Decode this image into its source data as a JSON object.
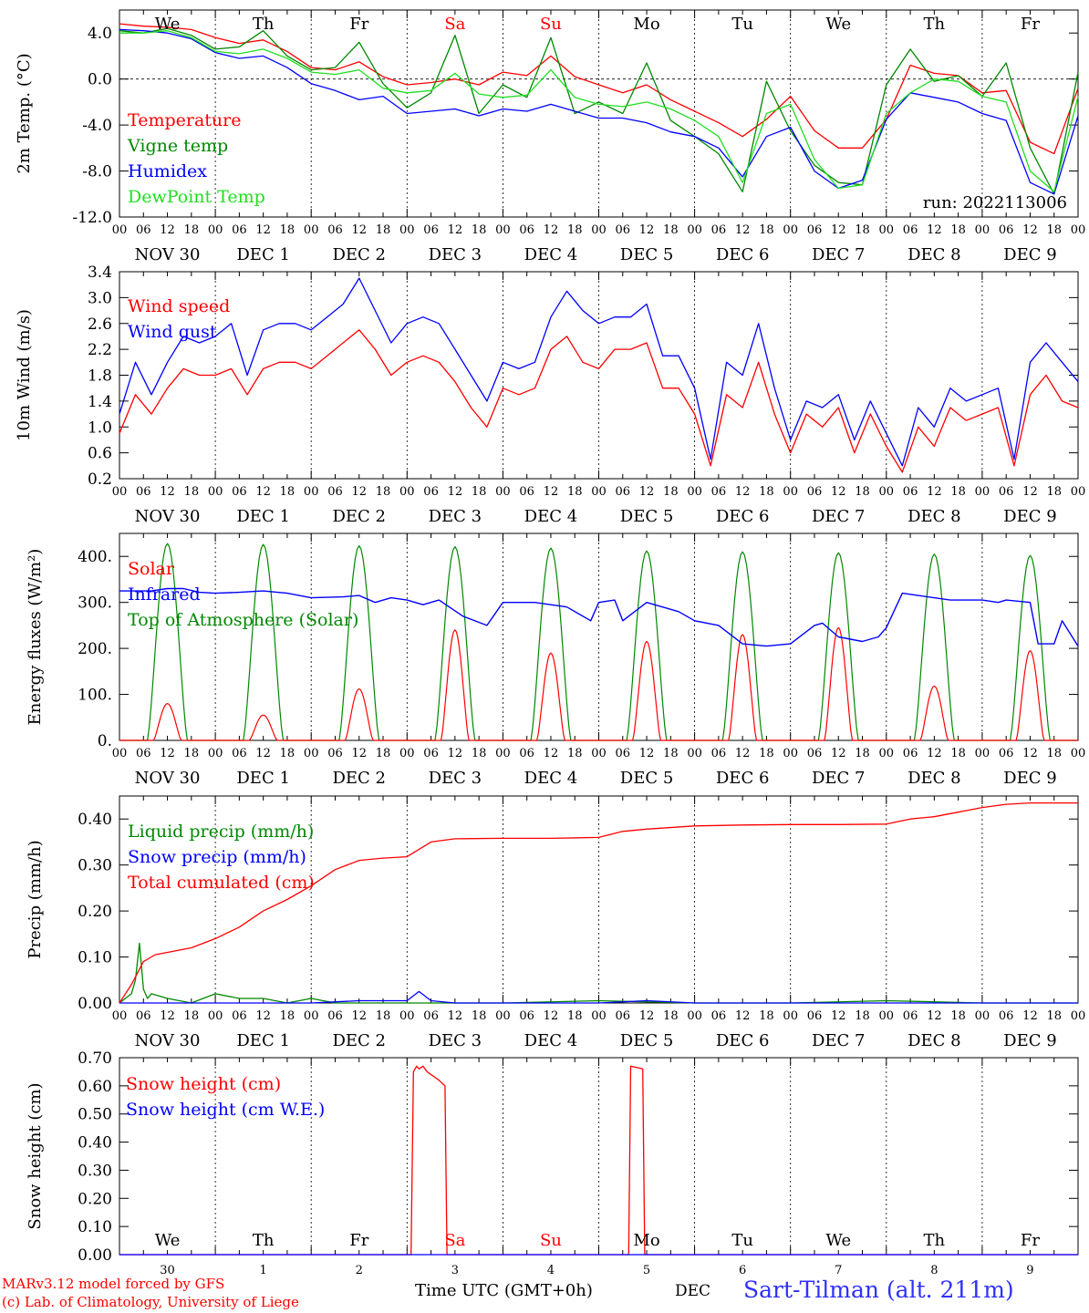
{
  "days": [
    "We",
    "Th",
    "Fr",
    "Sa",
    "Su",
    "Mo",
    "Tu",
    "We",
    "Th",
    "Fr"
  ],
  "weekend_days": [
    "Sa",
    "Su"
  ],
  "hour_ticks": [
    "00",
    "06",
    "12",
    "18"
  ],
  "date_labels": [
    "NOV 30",
    "DEC  1",
    "DEC  2",
    "DEC  3",
    "DEC  4",
    "DEC  5",
    "DEC  6",
    "DEC  7",
    "DEC  8",
    "DEC  9"
  ],
  "bottom_days": [
    "30",
    "1",
    "2",
    "3",
    "4",
    "5",
    "6",
    "7",
    "8",
    "9"
  ],
  "colors": {
    "red": "#ff0000",
    "green": "#008800",
    "blue": "#0000ff",
    "lightgreen": "#22dd22"
  },
  "footer": {
    "model": "MARv3.12 model forced by GFS",
    "lab": "(c) Lab. of Climatology, University of Liege",
    "xlabel": "Time UTC (GMT+0h)",
    "month": "DEC",
    "station": "Sart-Tilman (alt. 211m)"
  },
  "chart_data": [
    {
      "type": "line",
      "ylabel": "2m Temp. (°C)",
      "ylim": [
        -12,
        6
      ],
      "yticks": [
        "4.0",
        "0.0",
        "-4.0",
        "-8.0",
        "-12.0"
      ],
      "ytick_values": [
        4,
        0,
        -4,
        -8,
        -12
      ],
      "zero_line": true,
      "note": "run: 2022113006",
      "x_unit": "hours since NOV 30 00 UTC",
      "series": [
        {
          "name": "Temperature",
          "color": "red",
          "x": [
            0,
            6,
            12,
            18,
            24,
            30,
            36,
            42,
            48,
            54,
            60,
            66,
            72,
            78,
            84,
            90,
            96,
            102,
            108,
            114,
            120,
            126,
            132,
            138,
            144,
            150,
            156,
            162,
            168,
            174,
            180,
            186,
            192,
            198,
            204,
            210,
            216,
            222,
            228,
            234,
            240
          ],
          "values": [
            4.8,
            4.6,
            4.5,
            4.3,
            3.6,
            3.1,
            3.4,
            2.4,
            1.0,
            0.8,
            1.5,
            0.2,
            -0.5,
            -0.3,
            0.0,
            -0.5,
            0.6,
            0.3,
            2.0,
            0.2,
            -0.5,
            -1.2,
            -0.5,
            -1.8,
            -2.8,
            -3.8,
            -5.0,
            -3.5,
            -1.5,
            -4.5,
            -6.0,
            -6.0,
            -3.5,
            1.2,
            0.5,
            0.3,
            -1.2,
            -1.0,
            -5.5,
            -6.5,
            -0.8
          ]
        },
        {
          "name": "Vigne temp",
          "color": "green",
          "x": [
            0,
            6,
            12,
            18,
            24,
            30,
            36,
            42,
            48,
            54,
            60,
            66,
            72,
            78,
            84,
            90,
            96,
            102,
            108,
            114,
            120,
            126,
            132,
            138,
            144,
            150,
            156,
            162,
            168,
            174,
            180,
            186,
            192,
            198,
            204,
            210,
            216,
            222,
            228,
            234,
            240
          ],
          "values": [
            4.2,
            4.0,
            4.4,
            3.8,
            2.6,
            2.8,
            4.2,
            2.0,
            0.8,
            1.0,
            3.2,
            -0.4,
            -2.5,
            -1.2,
            3.8,
            -3.0,
            -0.5,
            -1.6,
            3.6,
            -3.0,
            -2.0,
            -3.0,
            1.4,
            -3.6,
            -5.0,
            -6.5,
            -9.8,
            -0.2,
            -4.5,
            -7.5,
            -9.0,
            -9.2,
            -0.5,
            2.6,
            -0.2,
            0.3,
            -1.5,
            1.4,
            -6.0,
            -10.0,
            0.6
          ]
        },
        {
          "name": "Humidex",
          "color": "blue",
          "x": [
            0,
            6,
            12,
            18,
            24,
            30,
            36,
            42,
            48,
            54,
            60,
            66,
            72,
            78,
            84,
            90,
            96,
            102,
            108,
            114,
            120,
            126,
            132,
            138,
            144,
            150,
            156,
            162,
            168,
            174,
            180,
            186,
            192,
            198,
            204,
            210,
            216,
            222,
            228,
            234,
            240
          ],
          "values": [
            4.3,
            4.2,
            4.0,
            3.5,
            2.3,
            1.8,
            2.0,
            1.0,
            -0.4,
            -1.0,
            -1.8,
            -1.5,
            -3.0,
            -2.8,
            -2.6,
            -3.2,
            -2.6,
            -2.8,
            -2.2,
            -2.8,
            -3.4,
            -3.4,
            -3.8,
            -4.6,
            -5.0,
            -6.0,
            -8.5,
            -5.0,
            -4.2,
            -8.0,
            -9.5,
            -8.8,
            -3.5,
            -1.2,
            -1.6,
            -2.0,
            -3.0,
            -3.6,
            -9.0,
            -10.0,
            -3.2
          ]
        },
        {
          "name": "DewPoint Temp",
          "color": "lightgreen",
          "x": [
            0,
            6,
            12,
            18,
            24,
            30,
            36,
            42,
            48,
            54,
            60,
            66,
            72,
            78,
            84,
            90,
            96,
            102,
            108,
            114,
            120,
            126,
            132,
            138,
            144,
            150,
            156,
            162,
            168,
            174,
            180,
            186,
            192,
            198,
            204,
            210,
            216,
            222,
            228,
            234,
            240
          ],
          "values": [
            4.0,
            4.0,
            4.2,
            3.6,
            2.4,
            2.2,
            2.6,
            1.8,
            0.6,
            0.4,
            0.8,
            -0.8,
            -1.2,
            -1.0,
            0.5,
            -1.3,
            -1.6,
            -1.4,
            0.8,
            -1.6,
            -2.2,
            -2.4,
            -2.0,
            -2.6,
            -3.6,
            -5.0,
            -9.0,
            -3.0,
            -2.2,
            -7.0,
            -9.5,
            -9.2,
            -3.0,
            -1.2,
            0.0,
            -0.2,
            -1.5,
            -2.0,
            -8.0,
            -9.8,
            -1.5
          ]
        }
      ]
    },
    {
      "type": "line",
      "ylabel": "10m Wind (m/s)",
      "ylim": [
        0.2,
        3.4
      ],
      "yticks": [
        "3.4",
        "3.0",
        "2.6",
        "2.2",
        "1.8",
        "1.4",
        "1.0",
        "0.6",
        "0.2"
      ],
      "ytick_values": [
        3.4,
        3.0,
        2.6,
        2.2,
        1.8,
        1.4,
        1.0,
        0.6,
        0.2
      ],
      "x_unit": "hours since NOV 30 00 UTC",
      "series": [
        {
          "name": "Wind speed",
          "color": "red",
          "x": [
            0,
            4,
            8,
            12,
            16,
            20,
            24,
            28,
            32,
            36,
            40,
            44,
            48,
            52,
            56,
            60,
            64,
            68,
            72,
            76,
            80,
            84,
            88,
            92,
            96,
            100,
            104,
            108,
            112,
            116,
            120,
            124,
            128,
            132,
            136,
            140,
            144,
            148,
            152,
            156,
            160,
            164,
            168,
            172,
            176,
            180,
            184,
            188,
            192,
            196,
            200,
            204,
            208,
            212,
            216,
            220,
            224,
            228,
            232,
            236,
            240
          ],
          "values": [
            0.9,
            1.5,
            1.2,
            1.6,
            1.9,
            1.8,
            1.8,
            1.9,
            1.5,
            1.9,
            2.0,
            2.0,
            1.9,
            2.1,
            2.3,
            2.5,
            2.2,
            1.8,
            2.0,
            2.1,
            2.0,
            1.7,
            1.3,
            1.0,
            1.6,
            1.5,
            1.6,
            2.2,
            2.4,
            2.0,
            1.9,
            2.2,
            2.2,
            2.3,
            1.6,
            1.6,
            1.2,
            0.4,
            1.5,
            1.3,
            2.0,
            1.2,
            0.6,
            1.2,
            1.0,
            1.3,
            0.6,
            1.2,
            0.7,
            0.3,
            1.0,
            0.7,
            1.3,
            1.1,
            1.2,
            1.3,
            0.4,
            1.5,
            1.8,
            1.4,
            1.3
          ]
        },
        {
          "name": "Wind gust",
          "color": "blue",
          "x": [
            0,
            4,
            8,
            12,
            16,
            20,
            24,
            28,
            32,
            36,
            40,
            44,
            48,
            52,
            56,
            60,
            64,
            68,
            72,
            76,
            80,
            84,
            88,
            92,
            96,
            100,
            104,
            108,
            112,
            116,
            120,
            124,
            128,
            132,
            136,
            140,
            144,
            148,
            152,
            156,
            160,
            164,
            168,
            172,
            176,
            180,
            184,
            188,
            192,
            196,
            200,
            204,
            208,
            212,
            216,
            220,
            224,
            228,
            232,
            236,
            240
          ],
          "values": [
            1.2,
            2.0,
            1.5,
            2.0,
            2.4,
            2.3,
            2.4,
            2.6,
            1.8,
            2.5,
            2.6,
            2.6,
            2.5,
            2.7,
            2.9,
            3.3,
            2.8,
            2.3,
            2.6,
            2.7,
            2.6,
            2.2,
            1.8,
            1.4,
            2.0,
            1.9,
            2.0,
            2.7,
            3.1,
            2.8,
            2.6,
            2.7,
            2.7,
            2.9,
            2.1,
            2.1,
            1.6,
            0.5,
            2.0,
            1.8,
            2.6,
            1.6,
            0.8,
            1.4,
            1.3,
            1.5,
            0.8,
            1.4,
            0.9,
            0.4,
            1.3,
            1.0,
            1.6,
            1.4,
            1.5,
            1.6,
            0.5,
            2.0,
            2.3,
            2.0,
            1.7
          ]
        }
      ]
    },
    {
      "type": "line",
      "ylabel": "Energy fluxes (W/m²)",
      "ylim": [
        0,
        450
      ],
      "yticks": [
        "400.",
        "300.",
        "200.",
        "100.",
        "0."
      ],
      "ytick_values": [
        400,
        300,
        200,
        100,
        0
      ],
      "x_unit": "hours since NOV 30 00 UTC",
      "daily_peaks": {
        "solar": [
          80,
          55,
          112,
          240,
          190,
          215,
          230,
          245,
          118,
          195
        ],
        "toa": [
          428,
          426,
          423,
          421,
          418,
          412,
          410,
          408,
          405,
          402
        ]
      },
      "series": [
        {
          "name": "Solar",
          "color": "red"
        },
        {
          "name": "Infrared",
          "color": "blue",
          "x": [
            0,
            8,
            12,
            16,
            20,
            24,
            30,
            36,
            42,
            48,
            56,
            60,
            64,
            68,
            72,
            76,
            80,
            86,
            92,
            96,
            104,
            112,
            118,
            120,
            124,
            126,
            132,
            140,
            144,
            150,
            156,
            162,
            168,
            174,
            176,
            180,
            186,
            190,
            192,
            196,
            200,
            204,
            208,
            212,
            216,
            220,
            222,
            228,
            230,
            234,
            236,
            240
          ],
          "values": [
            325,
            325,
            330,
            330,
            322,
            320,
            322,
            325,
            320,
            310,
            312,
            315,
            300,
            310,
            305,
            295,
            305,
            270,
            250,
            300,
            300,
            290,
            260,
            300,
            305,
            260,
            300,
            280,
            260,
            250,
            210,
            205,
            210,
            250,
            255,
            225,
            215,
            225,
            245,
            320,
            315,
            310,
            305,
            305,
            305,
            300,
            305,
            300,
            210,
            210,
            260,
            205
          ]
        },
        {
          "name": "Top of Atmosphere (Solar)",
          "color": "green"
        }
      ]
    },
    {
      "type": "line",
      "ylabel": "Precip (mm/h)",
      "ylim": [
        0,
        0.45
      ],
      "yticks": [
        "0.40",
        "0.30",
        "0.20",
        "0.10",
        "0.00"
      ],
      "ytick_values": [
        0.4,
        0.3,
        0.2,
        0.1,
        0.0
      ],
      "x_unit": "hours since NOV 30 00 UTC",
      "series": [
        {
          "name": "Liquid precip (mm/h)",
          "color": "green",
          "x": [
            0,
            3,
            4,
            5,
            6,
            7,
            8,
            12,
            18,
            24,
            30,
            36,
            42,
            48,
            54,
            60,
            72,
            96,
            120,
            144,
            168,
            192,
            216,
            240
          ],
          "values": [
            0.0,
            0.02,
            0.05,
            0.13,
            0.03,
            0.01,
            0.02,
            0.01,
            0.0,
            0.02,
            0.01,
            0.01,
            0.0,
            0.01,
            0.0,
            0.0,
            0.0,
            0.0,
            0.005,
            0.0,
            0.0,
            0.005,
            0.0,
            0.0
          ]
        },
        {
          "name": "Snow precip (mm/h)",
          "color": "blue",
          "x": [
            0,
            48,
            60,
            72,
            75,
            78,
            84,
            96,
            120,
            132,
            144,
            168,
            192,
            216,
            240
          ],
          "values": [
            0.0,
            0.0,
            0.005,
            0.005,
            0.025,
            0.005,
            0.0,
            0.0,
            0.0,
            0.005,
            0.0,
            0.0,
            0.0,
            0.0,
            0.0
          ]
        },
        {
          "name": "Total cumulated (cm)",
          "color": "red",
          "x": [
            0,
            3,
            6,
            9,
            12,
            18,
            24,
            30,
            36,
            42,
            48,
            54,
            60,
            66,
            72,
            78,
            84,
            96,
            108,
            120,
            126,
            132,
            144,
            156,
            168,
            180,
            192,
            198,
            204,
            210,
            216,
            222,
            228,
            240
          ],
          "values": [
            0.0,
            0.04,
            0.09,
            0.105,
            0.11,
            0.12,
            0.14,
            0.165,
            0.2,
            0.225,
            0.255,
            0.29,
            0.31,
            0.315,
            0.318,
            0.35,
            0.357,
            0.358,
            0.358,
            0.36,
            0.373,
            0.378,
            0.385,
            0.387,
            0.388,
            0.388,
            0.389,
            0.4,
            0.405,
            0.415,
            0.425,
            0.432,
            0.435,
            0.435
          ]
        }
      ]
    },
    {
      "type": "line",
      "ylabel": "Snow height (cm)",
      "ylim": [
        0,
        0.7
      ],
      "yticks": [
        "0.70",
        "0.60",
        "0.50",
        "0.40",
        "0.30",
        "0.20",
        "0.10",
        "0.00"
      ],
      "ytick_values": [
        0.7,
        0.6,
        0.5,
        0.4,
        0.3,
        0.2,
        0.1,
        0.0
      ],
      "x_unit": "hours since NOV 30 00 UTC",
      "series": [
        {
          "name": "Snow height (cm)",
          "color": "red",
          "x": [
            0,
            73,
            73.6,
            74.4,
            75,
            76,
            77,
            80,
            81.5,
            82,
            120,
            127.5,
            128,
            131,
            131.5,
            132,
            240
          ],
          "values": [
            0,
            0,
            0.65,
            0.67,
            0.66,
            0.67,
            0.65,
            0.62,
            0.6,
            0,
            0,
            0,
            0.67,
            0.66,
            0,
            0,
            0
          ]
        },
        {
          "name": "Snow height (cm W.E.)",
          "color": "blue",
          "x": [
            0,
            240
          ],
          "values": [
            0,
            0
          ]
        }
      ]
    }
  ]
}
